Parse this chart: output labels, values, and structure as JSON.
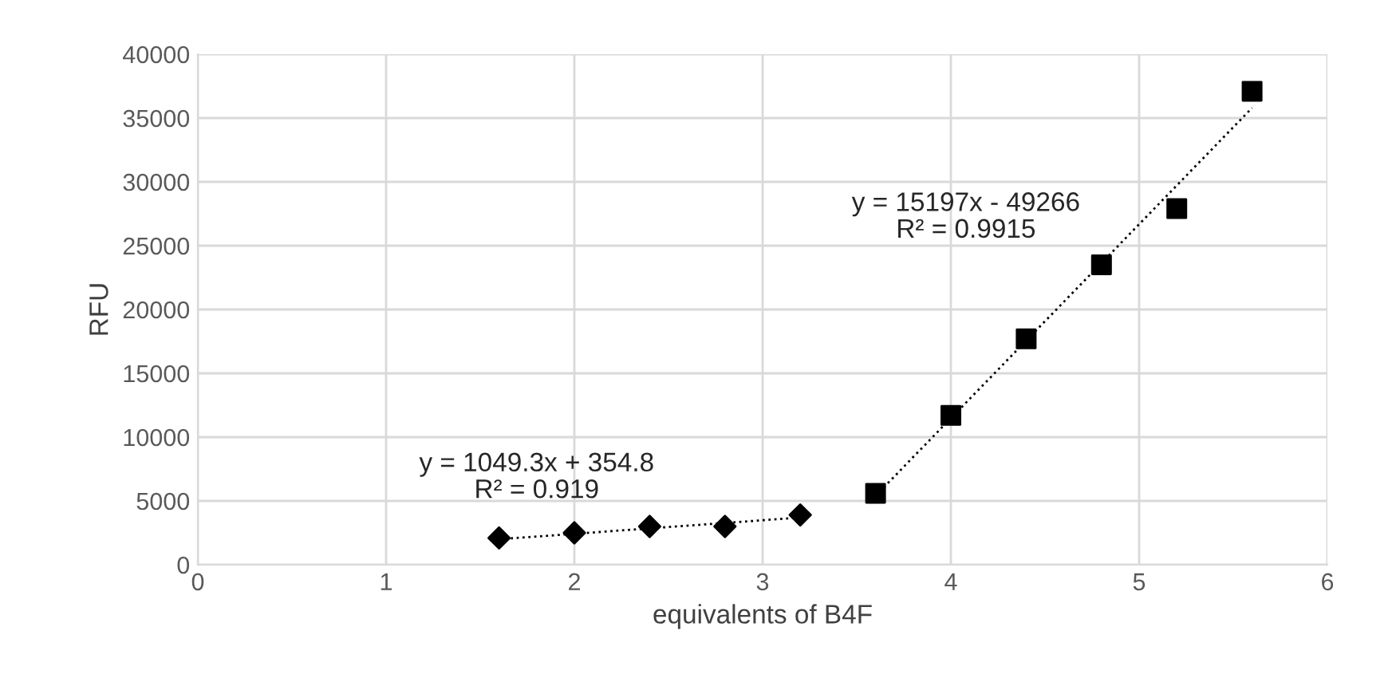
{
  "chart_data": {
    "type": "scatter",
    "xlabel": "equivalents of B4F",
    "ylabel": "RFU",
    "xlim": [
      0,
      6
    ],
    "xticks": [
      0,
      1,
      2,
      3,
      4,
      5,
      6
    ],
    "ylim": [
      0,
      40000
    ],
    "yticks": [
      0,
      5000,
      10000,
      15000,
      20000,
      25000,
      30000,
      35000,
      40000
    ],
    "grid": true,
    "legend": false,
    "series": [
      {
        "marker": "diamond",
        "color": "#000000",
        "x": [
          1.6,
          2.0,
          2.4,
          2.8,
          3.2
        ],
        "values": [
          2100,
          2500,
          3000,
          3000,
          3900
        ]
      },
      {
        "marker": "square",
        "color": "#000000",
        "x": [
          3.6,
          4.0,
          4.4,
          4.8,
          5.2,
          5.6
        ],
        "values": [
          5600,
          11700,
          17700,
          23500,
          27900,
          37100
        ]
      },
      {
        "type": "line",
        "line_style": "dotted",
        "color": "#000000",
        "x": [
          1.6,
          3.2
        ],
        "values": [
          2000,
          3700
        ]
      },
      {
        "type": "line",
        "line_style": "dotted",
        "color": "#000000",
        "x": [
          3.6,
          5.6
        ],
        "values": [
          5400,
          35800
        ]
      }
    ],
    "annotations": [
      "y = 1049.3x + 354.8\nR² = 0.919",
      "y = 15197x - 49266\nR² = 0.9915"
    ]
  }
}
